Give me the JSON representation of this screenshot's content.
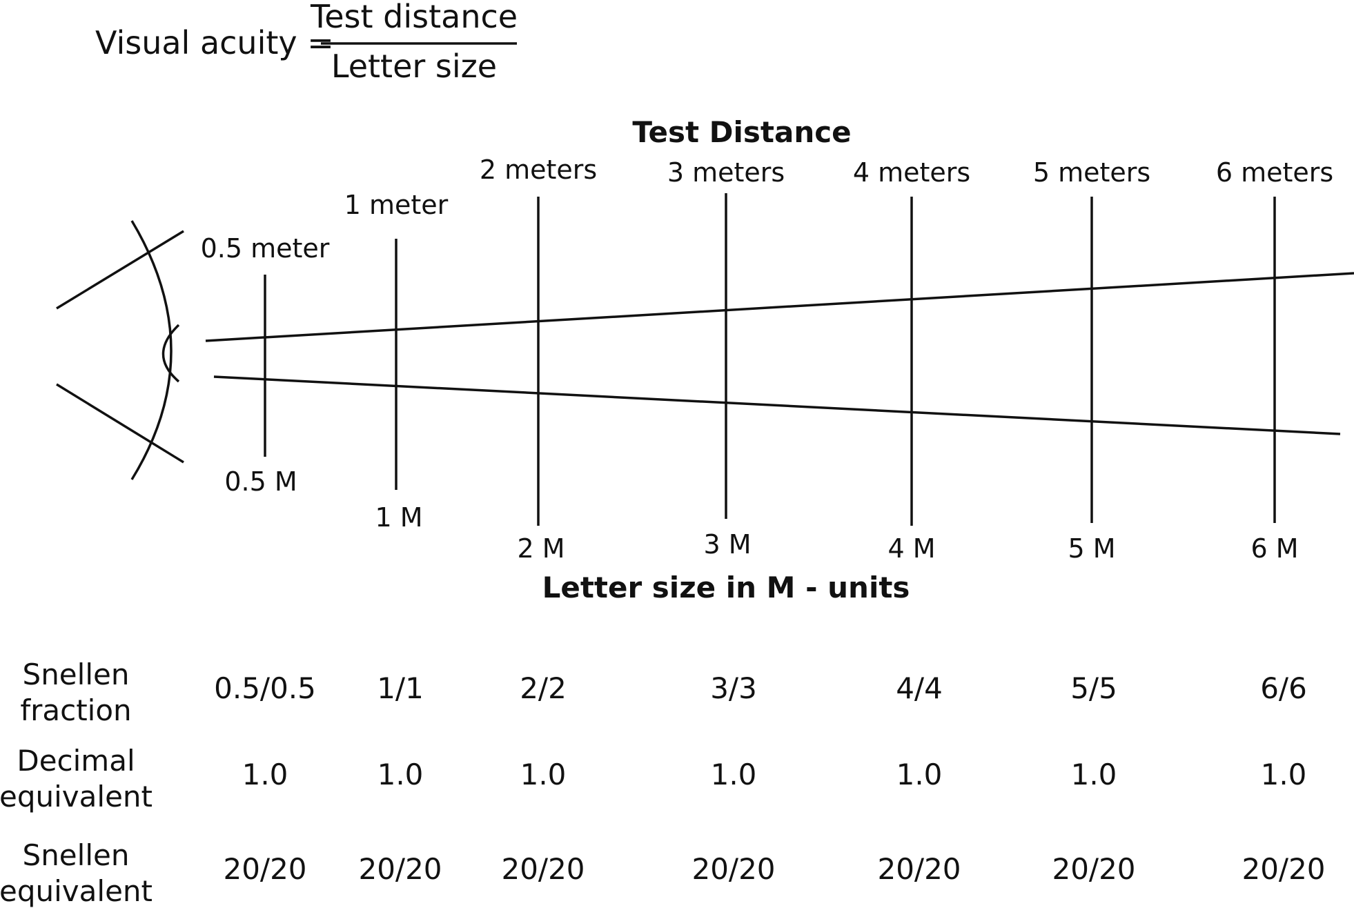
{
  "formula": {
    "lhs": "Visual acuity =",
    "numerator": "Test distance",
    "denominator": "Letter size"
  },
  "headings": {
    "top": "Test Distance",
    "bottom": "Letter size in M - units"
  },
  "distances": [
    {
      "distance_label": "0.5 meter",
      "letter_size_label": "0.5 M",
      "distance_m": 0.5
    },
    {
      "distance_label": "1 meter",
      "letter_size_label": "1 M",
      "distance_m": 1
    },
    {
      "distance_label": "2 meters",
      "letter_size_label": "2 M",
      "distance_m": 2
    },
    {
      "distance_label": "3 meters",
      "letter_size_label": "3 M",
      "distance_m": 3
    },
    {
      "distance_label": "4 meters",
      "letter_size_label": "4 M",
      "distance_m": 4
    },
    {
      "distance_label": "5 meters",
      "letter_size_label": "5 M",
      "distance_m": 5
    },
    {
      "distance_label": "6 meters",
      "letter_size_label": "6 M",
      "distance_m": 6
    }
  ],
  "table": {
    "rows": [
      {
        "label_lines": [
          "Snellen",
          "fraction"
        ],
        "values": [
          "0.5/0.5",
          "1/1",
          "2/2",
          "3/3",
          "4/4",
          "5/5",
          "6/6"
        ]
      },
      {
        "label_lines": [
          "Decimal",
          "equivalent"
        ],
        "values": [
          "1.0",
          "1.0",
          "1.0",
          "1.0",
          "1.0",
          "1.0",
          "1.0"
        ]
      },
      {
        "label_lines": [
          "Snellen",
          "equivalent"
        ],
        "values": [
          "20/20",
          "20/20",
          "20/20",
          "20/20",
          "20/20",
          "20/20",
          "20/20"
        ]
      }
    ]
  },
  "icons": {
    "eye": "eye-icon"
  }
}
